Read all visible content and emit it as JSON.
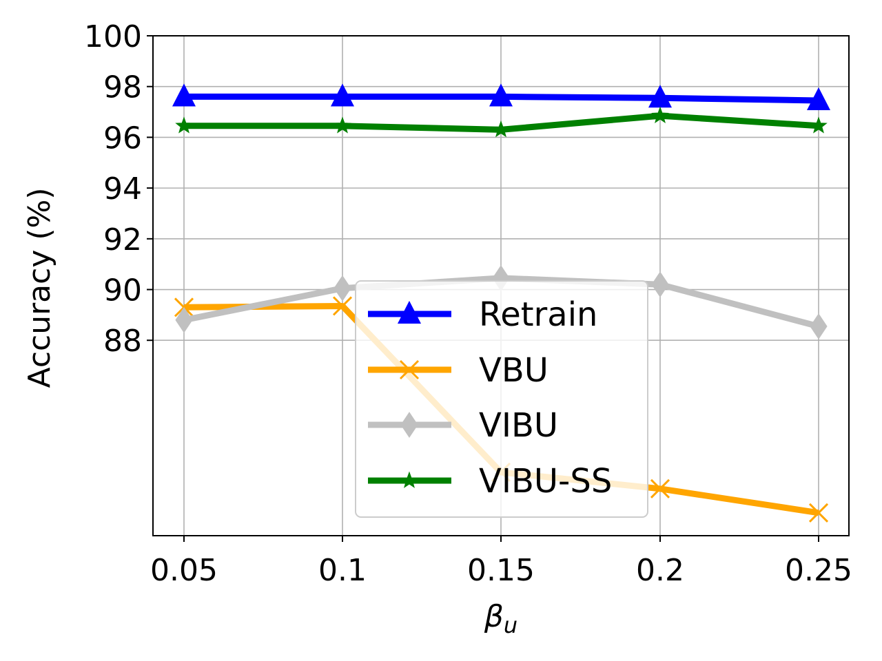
{
  "chart_data": {
    "type": "line",
    "x": [
      "0.05",
      "0.1",
      "0.15",
      "0.2",
      "0.25"
    ],
    "xlabel_symbol": "β",
    "xlabel_subscript": "u",
    "ylabel": "Accuracy (%)",
    "yticks": [
      88,
      90,
      92,
      94,
      96,
      98,
      100
    ],
    "ylim": [
      80.3,
      100
    ],
    "grid": true,
    "legend_position": "lower-center",
    "series": [
      {
        "name": "Retrain",
        "color": "#0000ff",
        "marker": "triangle-up",
        "values": [
          97.6,
          97.6,
          97.6,
          97.55,
          97.45
        ]
      },
      {
        "name": "VBU",
        "color": "#ffa500",
        "marker": "x",
        "values": [
          89.3,
          89.35,
          82.8,
          82.15,
          81.2
        ]
      },
      {
        "name": "VIBU",
        "color": "#c0c0c0",
        "marker": "thin-diamond",
        "values": [
          88.8,
          90.05,
          90.45,
          90.2,
          88.55
        ]
      },
      {
        "name": "VIBU-SS",
        "color": "#008000",
        "marker": "star",
        "values": [
          96.45,
          96.45,
          96.3,
          96.85,
          96.45
        ]
      }
    ]
  }
}
